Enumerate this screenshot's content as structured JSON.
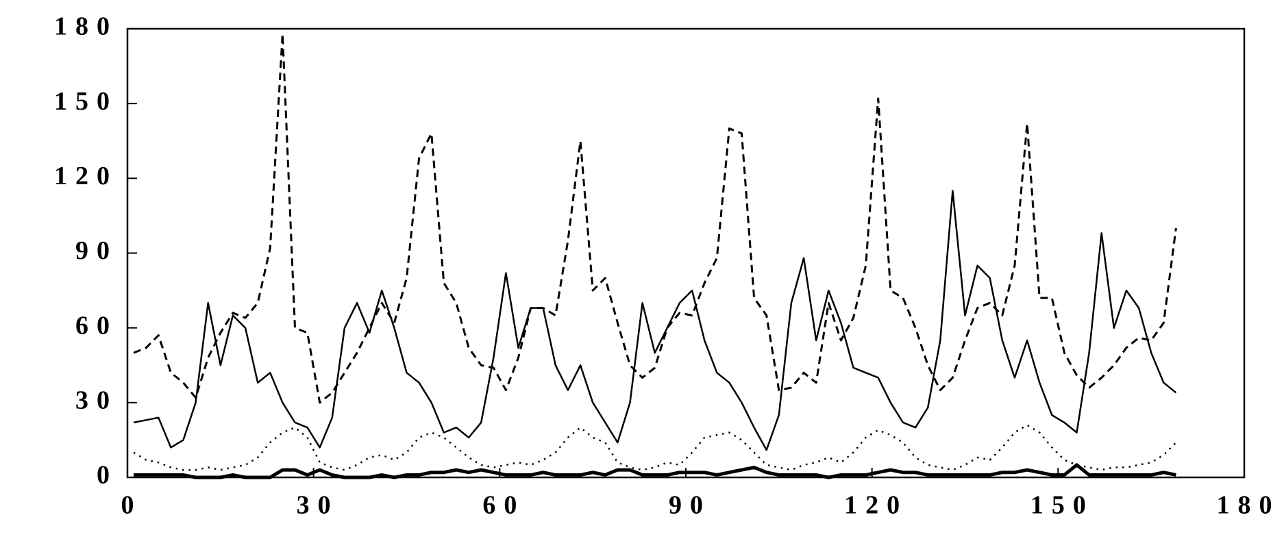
{
  "chart_data": {
    "type": "line",
    "x": [
      1,
      3,
      5,
      7,
      9,
      11,
      13,
      15,
      17,
      19,
      21,
      23,
      25,
      27,
      29,
      31,
      33,
      35,
      37,
      39,
      41,
      43,
      45,
      47,
      49,
      51,
      53,
      55,
      57,
      59,
      61,
      63,
      65,
      67,
      69,
      71,
      73,
      75,
      77,
      79,
      81,
      83,
      85,
      87,
      89,
      91,
      93,
      95,
      97,
      99,
      101,
      103,
      105,
      107,
      109,
      111,
      113,
      115,
      117,
      119,
      121,
      123,
      125,
      127,
      129,
      131,
      133,
      135,
      137,
      139,
      141,
      143,
      145,
      147,
      149,
      151,
      153,
      155,
      157,
      159,
      161,
      163,
      165,
      167,
      169
    ],
    "series": [
      {
        "color": "#000000",
        "style": "dashed",
        "width": 3,
        "values": [
          50,
          52,
          57,
          42,
          38,
          32,
          48,
          58,
          66,
          64,
          70,
          92,
          178,
          60,
          58,
          30,
          34,
          42,
          50,
          60,
          70,
          62,
          80,
          128,
          138,
          78,
          70,
          52,
          45,
          44,
          35,
          48,
          68,
          68,
          65,
          95,
          135,
          75,
          80,
          62,
          45,
          40,
          44,
          60,
          66,
          65,
          78,
          88,
          140,
          138,
          72,
          65,
          35,
          36,
          42,
          38,
          70,
          55,
          64,
          85,
          152,
          75,
          72,
          60,
          45,
          35,
          40,
          55,
          68,
          70,
          65,
          85,
          142,
          72,
          72,
          50,
          41,
          36,
          40,
          45,
          52,
          56,
          55,
          62,
          100
        ]
      },
      {
        "color": "#000000",
        "style": "solid",
        "width": 2.5,
        "values": [
          22,
          23,
          24,
          12,
          15,
          30,
          70,
          45,
          65,
          60,
          38,
          42,
          30,
          22,
          20,
          12,
          24,
          60,
          70,
          58,
          75,
          60,
          42,
          38,
          30,
          18,
          20,
          16,
          22,
          48,
          82,
          52,
          68,
          68,
          45,
          35,
          45,
          30,
          22,
          14,
          30,
          70,
          50,
          60,
          70,
          75,
          55,
          42,
          38,
          30,
          20,
          11,
          25,
          70,
          88,
          55,
          75,
          62,
          44,
          42,
          40,
          30,
          22,
          20,
          28,
          55,
          115,
          65,
          85,
          80,
          55,
          40,
          55,
          38,
          25,
          22,
          18,
          50,
          98,
          60,
          75,
          68,
          50,
          38,
          34
        ]
      },
      {
        "color": "#000000",
        "style": "dotted",
        "width": 2.5,
        "values": [
          10,
          7,
          6,
          4,
          3,
          3,
          4,
          3,
          4,
          5,
          8,
          14,
          18,
          20,
          16,
          6,
          4,
          3,
          5,
          8,
          9,
          7,
          10,
          16,
          18,
          16,
          12,
          8,
          5,
          4,
          5,
          6,
          5,
          7,
          10,
          16,
          20,
          16,
          14,
          6,
          4,
          3,
          4,
          6,
          5,
          10,
          16,
          17,
          18,
          15,
          10,
          5,
          4,
          3,
          5,
          6,
          8,
          6,
          10,
          16,
          19,
          17,
          14,
          8,
          5,
          4,
          3,
          5,
          8,
          7,
          12,
          18,
          21,
          18,
          12,
          7,
          5,
          4,
          3,
          4,
          4,
          5,
          6,
          9,
          14
        ]
      },
      {
        "color": "#000000",
        "style": "solid",
        "width": 5,
        "values": [
          1,
          1,
          1,
          1,
          1,
          0,
          0,
          0,
          1,
          0,
          0,
          0,
          3,
          3,
          1,
          3,
          1,
          0,
          0,
          0,
          1,
          0,
          1,
          1,
          2,
          2,
          3,
          2,
          3,
          2,
          1,
          1,
          1,
          2,
          1,
          1,
          1,
          2,
          1,
          3,
          3,
          1,
          1,
          1,
          2,
          2,
          2,
          1,
          2,
          3,
          4,
          2,
          1,
          1,
          1,
          1,
          0,
          1,
          1,
          1,
          2,
          3,
          2,
          2,
          1,
          1,
          1,
          1,
          1,
          1,
          2,
          2,
          3,
          2,
          1,
          1,
          5,
          1,
          1,
          1,
          1,
          1,
          1,
          2,
          1
        ]
      }
    ],
    "xlim": [
      0,
      180
    ],
    "xticks": [
      0,
      30,
      60,
      90,
      120,
      150,
      180
    ],
    "ylim": [
      0,
      180
    ],
    "yticks": [
      0,
      30,
      60,
      90,
      120,
      150,
      180
    ]
  }
}
